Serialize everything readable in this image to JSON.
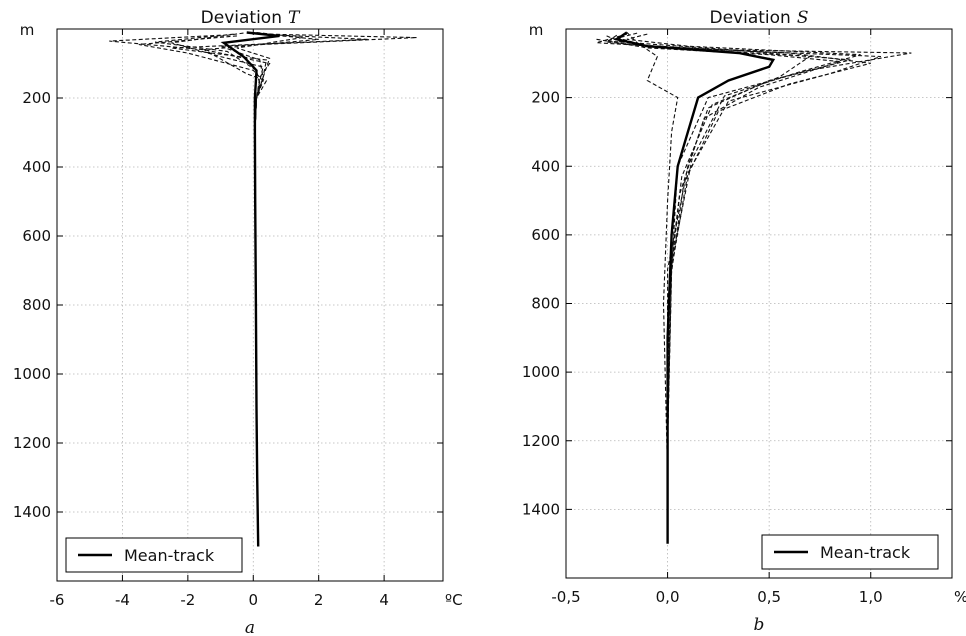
{
  "chart_data": [
    {
      "type": "line",
      "title": "Deviation",
      "title_symbol": "T",
      "x_unit": "ºC",
      "y_unit": "m",
      "subfigure_label": "a",
      "xlim": [
        -6,
        5.8
      ],
      "ylim": [
        1600,
        0
      ],
      "x_ticks": [
        -6,
        -4,
        -2,
        0,
        2,
        4
      ],
      "x_tick_labels": [
        "-6",
        "-4",
        "-2",
        "0",
        "2",
        "4"
      ],
      "y_ticks": [
        200,
        400,
        600,
        800,
        1000,
        1200,
        1400
      ],
      "y_tick_labels": [
        "200",
        "400",
        "600",
        "800",
        "1000",
        "1200",
        "1400"
      ],
      "grid": true,
      "legend": {
        "entries": [
          "Mean-track"
        ],
        "placement": "lower-left"
      },
      "mean_track": {
        "name": "Mean-track",
        "style": "solid",
        "x": [
          -0.2,
          0.8,
          -0.9,
          -0.3,
          0.1,
          0.05,
          0.05,
          0.06,
          0.08,
          0.1,
          0.12,
          0.15
        ],
        "y": [
          10,
          20,
          40,
          80,
          120,
          200,
          300,
          500,
          800,
          1100,
          1300,
          1500
        ]
      },
      "profiles": [
        {
          "x": [
            0.5,
            5.0,
            -1.0,
            0.2,
            0.3,
            0.1,
            0.05
          ],
          "y": [
            15,
            25,
            50,
            90,
            140,
            200,
            300
          ]
        },
        {
          "x": [
            0.2,
            3.5,
            -2.5,
            0.4,
            0.3,
            0.1,
            0.05
          ],
          "y": [
            15,
            30,
            55,
            90,
            140,
            200,
            300
          ]
        },
        {
          "x": [
            -1.0,
            -4.4,
            -1.5,
            0.5,
            0.2,
            0.1,
            0.05
          ],
          "y": [
            18,
            35,
            60,
            100,
            140,
            200,
            300
          ]
        },
        {
          "x": [
            -0.5,
            -3.5,
            -2.0,
            0.0,
            0.3,
            0.1,
            0.05
          ],
          "y": [
            20,
            45,
            70,
            120,
            150,
            200,
            300
          ]
        },
        {
          "x": [
            0.3,
            2.0,
            -1.5,
            -0.2,
            0.4,
            0.1,
            0.05
          ],
          "y": [
            15,
            30,
            60,
            130,
            150,
            200,
            300
          ]
        },
        {
          "x": [
            -0.3,
            -2.5,
            -1.0,
            0.3,
            0.2,
            0.1,
            0.05
          ],
          "y": [
            12,
            40,
            80,
            110,
            150,
            200,
            300
          ]
        },
        {
          "x": [
            0.1,
            1.5,
            -0.5,
            0.5,
            0.3,
            0.1,
            0.05
          ],
          "y": [
            10,
            25,
            55,
            85,
            140,
            200,
            300
          ]
        },
        {
          "x": [
            -0.6,
            -3.0,
            -0.8,
            0.1,
            0.2,
            0.1,
            0.05
          ],
          "y": [
            15,
            38,
            65,
            120,
            160,
            200,
            300
          ]
        }
      ]
    },
    {
      "type": "line",
      "title": "Deviation",
      "title_symbol": "S",
      "x_unit": "‰",
      "y_unit": "m",
      "subfigure_label": "b",
      "xlim": [
        -0.5,
        1.4
      ],
      "ylim": [
        1600,
        0
      ],
      "x_ticks": [
        -0.5,
        0.0,
        0.5,
        1.0
      ],
      "x_tick_labels": [
        "-0,5",
        "0,0",
        "0,5",
        "1,0"
      ],
      "y_ticks": [
        200,
        400,
        600,
        800,
        1000,
        1200,
        1400
      ],
      "y_tick_labels": [
        "200",
        "400",
        "600",
        "800",
        "1000",
        "1200",
        "1400"
      ],
      "grid": true,
      "legend": {
        "entries": [
          "Mean-track"
        ],
        "placement": "lower-right"
      },
      "mean_track": {
        "name": "Mean-track",
        "style": "solid",
        "x": [
          -0.2,
          -0.25,
          -0.1,
          0.35,
          0.52,
          0.5,
          0.3,
          0.15,
          0.1,
          0.05,
          0.02,
          0.0,
          0.0,
          0.0
        ],
        "y": [
          10,
          30,
          50,
          70,
          90,
          110,
          150,
          200,
          300,
          400,
          600,
          900,
          1200,
          1500
        ]
      },
      "profiles": [
        {
          "x": [
            -0.2,
            -0.35,
            0.2,
            1.2,
            0.7,
            0.2,
            0.05,
            0.02,
            0.0
          ],
          "y": [
            15,
            40,
            60,
            70,
            120,
            200,
            400,
            700,
            1200
          ]
        },
        {
          "x": [
            -0.3,
            -0.2,
            0.4,
            1.05,
            0.8,
            0.3,
            0.1,
            0.02,
            0.0
          ],
          "y": [
            20,
            45,
            65,
            80,
            130,
            210,
            420,
            700,
            1200
          ]
        },
        {
          "x": [
            -0.25,
            -0.1,
            0.6,
            1.0,
            0.6,
            0.25,
            0.08,
            0.01,
            0.0
          ],
          "y": [
            25,
            50,
            70,
            100,
            160,
            240,
            450,
            750,
            1250
          ]
        },
        {
          "x": [
            -0.15,
            -0.3,
            0.3,
            0.9,
            0.5,
            0.2,
            0.1,
            0.0,
            0.0
          ],
          "y": [
            12,
            35,
            60,
            90,
            150,
            230,
            400,
            700,
            1200
          ]
        },
        {
          "x": [
            -0.35,
            -0.1,
            0.5,
            0.85,
            0.45,
            0.18,
            0.06,
            0.0,
            0.0
          ],
          "y": [
            30,
            55,
            75,
            95,
            170,
            260,
            480,
            800,
            1300
          ]
        },
        {
          "x": [
            -0.2,
            -0.15,
            -0.05,
            -0.1,
            0.05,
            0.02,
            0.0,
            -0.02,
            0.0
          ],
          "y": [
            10,
            40,
            80,
            150,
            200,
            300,
            500,
            800,
            1300
          ]
        },
        {
          "x": [
            -0.25,
            -0.3,
            0.0,
            0.7,
            0.55,
            0.22,
            0.07,
            0.01,
            0.0
          ],
          "y": [
            18,
            38,
            55,
            80,
            140,
            220,
            430,
            720,
            1250
          ]
        },
        {
          "x": [
            -0.1,
            -0.2,
            0.1,
            0.95,
            0.65,
            0.28,
            0.12,
            0.02,
            0.0
          ],
          "y": [
            15,
            30,
            50,
            75,
            125,
            195,
            380,
            680,
            1180
          ]
        }
      ]
    }
  ]
}
